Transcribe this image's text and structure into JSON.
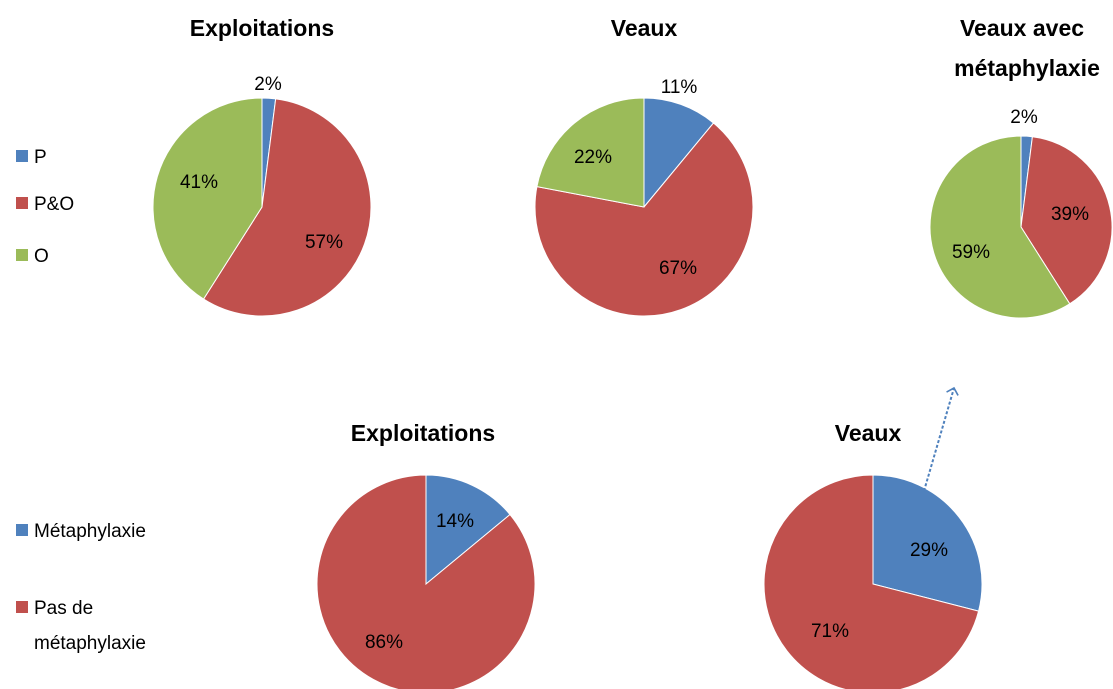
{
  "legends": {
    "top": [
      {
        "label": "P",
        "color": "#4F81BD"
      },
      {
        "label": "P&O",
        "color": "#C0504D"
      },
      {
        "label": "O",
        "color": "#9BBB59"
      }
    ],
    "bottom": [
      {
        "label": "Métaphylaxie",
        "color": "#4F81BD"
      },
      {
        "label": "Pas de",
        "label2": "métaphylaxie",
        "color": "#C0504D"
      }
    ]
  },
  "chart_data": [
    {
      "type": "pie",
      "title": "Exploitations",
      "labels": [
        "P",
        "P&O",
        "O"
      ],
      "values": [
        2,
        57,
        41
      ],
      "display": [
        "2%",
        "57%",
        "41%"
      ],
      "colors": [
        "#4F81BD",
        "#C0504D",
        "#9BBB59"
      ]
    },
    {
      "type": "pie",
      "title": "Veaux",
      "labels": [
        "P",
        "P&O",
        "O"
      ],
      "values": [
        11,
        67,
        22
      ],
      "display": [
        "11%",
        "67%",
        "22%"
      ],
      "colors": [
        "#4F81BD",
        "#C0504D",
        "#9BBB59"
      ]
    },
    {
      "type": "pie",
      "title": "Veaux avec",
      "title2": "métaphylaxie",
      "labels": [
        "P",
        "P&O",
        "O"
      ],
      "values": [
        2,
        39,
        59
      ],
      "display": [
        "2%",
        "39%",
        "59%"
      ],
      "colors": [
        "#4F81BD",
        "#C0504D",
        "#9BBB59"
      ]
    },
    {
      "type": "pie",
      "title": "Exploitations",
      "labels": [
        "Métaphylaxie",
        "Pas de métaphylaxie"
      ],
      "values": [
        14,
        86
      ],
      "display": [
        "14%",
        "86%"
      ],
      "colors": [
        "#4F81BD",
        "#C0504D"
      ]
    },
    {
      "type": "pie",
      "title": "Veaux",
      "labels": [
        "Métaphylaxie",
        "Pas de métaphylaxie"
      ],
      "values": [
        29,
        71
      ],
      "display": [
        "29%",
        "71%"
      ],
      "colors": [
        "#4F81BD",
        "#C0504D"
      ]
    }
  ]
}
